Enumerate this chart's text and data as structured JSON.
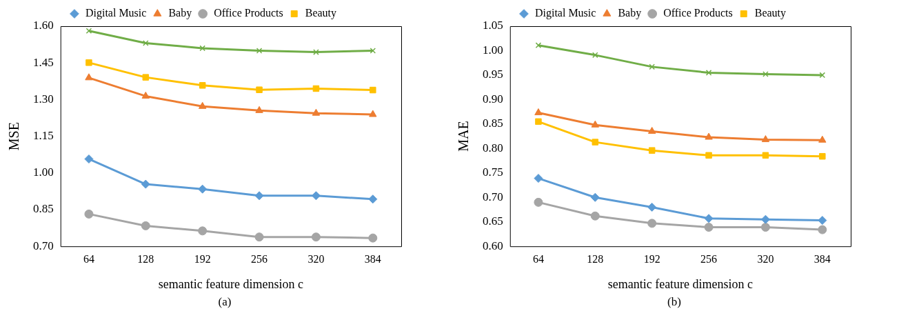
{
  "chart_data": [
    {
      "type": "line",
      "categories": [
        "64",
        "128",
        "192",
        "256",
        "320",
        "384"
      ],
      "xlabel": "semantic feature dimension c",
      "ylabel": "MSE",
      "ylim": [
        0.7,
        1.6
      ],
      "yticks": [
        {
          "value": 0.7,
          "label": "0.70"
        },
        {
          "value": 0.85,
          "label": "0.85"
        },
        {
          "value": 1.0,
          "label": "1.00"
        },
        {
          "value": 1.15,
          "label": "1.15"
        },
        {
          "value": 1.3,
          "label": "1.30"
        },
        {
          "value": 1.45,
          "label": "1.45"
        },
        {
          "value": 1.6,
          "label": "1.60"
        }
      ],
      "grid": false,
      "legend": "top",
      "annotations": [
        "(a)"
      ],
      "series": [
        {
          "name": "Digital Music",
          "color": "#5b9bd5",
          "marker": "diamond",
          "values": [
            1.057,
            0.954,
            0.934,
            0.907,
            0.907,
            0.893
          ]
        },
        {
          "name": "Baby",
          "color": "#ed7d31",
          "marker": "triangle",
          "values": [
            1.389,
            1.314,
            1.272,
            1.255,
            1.244,
            1.239
          ]
        },
        {
          "name": "Office Products",
          "color": "#a5a5a5",
          "marker": "circle",
          "values": [
            0.832,
            0.784,
            0.763,
            0.738,
            0.738,
            0.734
          ]
        },
        {
          "name": "Beauty",
          "color": "#ffc000",
          "marker": "square",
          "values": [
            1.451,
            1.391,
            1.358,
            1.34,
            1.345,
            1.339
          ]
        },
        {
          "color": "#70ad47",
          "marker": "cross",
          "values": [
            1.581,
            1.531,
            1.51,
            1.5,
            1.494,
            1.5
          ]
        }
      ]
    },
    {
      "type": "line",
      "categories": [
        "64",
        "128",
        "192",
        "256",
        "320",
        "384"
      ],
      "xlabel": "semantic feature dimension c",
      "ylabel": "MAE",
      "ylim": [
        0.6,
        1.05
      ],
      "yticks": [
        {
          "value": 0.6,
          "label": "0.60"
        },
        {
          "value": 0.65,
          "label": "0.65"
        },
        {
          "value": 0.7,
          "label": "0.70"
        },
        {
          "value": 0.75,
          "label": "0.75"
        },
        {
          "value": 0.8,
          "label": "0.80"
        },
        {
          "value": 0.85,
          "label": "0.85"
        },
        {
          "value": 0.9,
          "label": "0.90"
        },
        {
          "value": 0.95,
          "label": "0.95"
        },
        {
          "value": 1.0,
          "label": "1.00"
        },
        {
          "value": 1.05,
          "label": "1.05"
        }
      ],
      "grid": false,
      "legend": "top",
      "annotations": [
        "(b)"
      ],
      "series": [
        {
          "name": "Digital Music",
          "color": "#5b9bd5",
          "marker": "diamond",
          "values": [
            0.739,
            0.7,
            0.68,
            0.657,
            0.655,
            0.653
          ]
        },
        {
          "name": "Baby",
          "color": "#ed7d31",
          "marker": "triangle",
          "values": [
            0.873,
            0.848,
            0.835,
            0.823,
            0.818,
            0.817
          ]
        },
        {
          "name": "Office Products",
          "color": "#a5a5a5",
          "marker": "circle",
          "values": [
            0.69,
            0.662,
            0.647,
            0.639,
            0.639,
            0.634
          ]
        },
        {
          "name": "Beauty",
          "color": "#ffc000",
          "marker": "square",
          "values": [
            0.855,
            0.813,
            0.796,
            0.786,
            0.786,
            0.784
          ]
        },
        {
          "color": "#70ad47",
          "marker": "cross",
          "values": [
            1.011,
            0.991,
            0.967,
            0.955,
            0.952,
            0.95
          ]
        }
      ]
    }
  ]
}
